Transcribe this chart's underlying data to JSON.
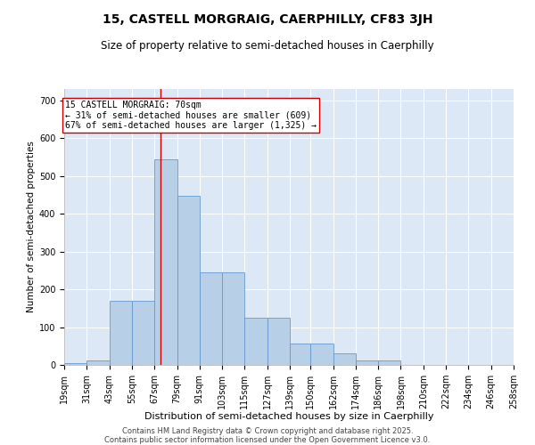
{
  "title1": "15, CASTELL MORGRAIG, CAERPHILLY, CF83 3JH",
  "title2": "Size of property relative to semi-detached houses in Caerphilly",
  "xlabel": "Distribution of semi-detached houses by size in Caerphilly",
  "ylabel": "Number of semi-detached properties",
  "bin_edges": [
    19,
    31,
    43,
    55,
    67,
    79,
    91,
    103,
    115,
    127,
    139,
    150,
    162,
    174,
    186,
    198,
    210,
    222,
    234,
    246,
    258
  ],
  "bar_heights": [
    5,
    12,
    170,
    170,
    545,
    448,
    245,
    245,
    125,
    125,
    57,
    57,
    30,
    12,
    12,
    0,
    0,
    0,
    0,
    0
  ],
  "bar_color": "#b8cfe8",
  "bar_edgecolor": "#6699cc",
  "property_size": 70,
  "vline_color": "#cc0000",
  "annotation_text": "15 CASTELL MORGRAIG: 70sqm\n← 31% of semi-detached houses are smaller (609)\n67% of semi-detached houses are larger (1,325) →",
  "annotation_box_edgecolor": "#cc0000",
  "annotation_box_facecolor": "#ffffff",
  "ylim": [
    0,
    730
  ],
  "yticks": [
    0,
    100,
    200,
    300,
    400,
    500,
    600,
    700
  ],
  "background_color": "#dce8f5",
  "grid_color": "#ffffff",
  "footer1": "Contains HM Land Registry data © Crown copyright and database right 2025.",
  "footer2": "Contains public sector information licensed under the Open Government Licence v3.0.",
  "title1_fontsize": 10,
  "title2_fontsize": 8.5,
  "xlabel_fontsize": 8,
  "ylabel_fontsize": 7.5,
  "tick_fontsize": 7,
  "annotation_fontsize": 7,
  "footer_fontsize": 6
}
